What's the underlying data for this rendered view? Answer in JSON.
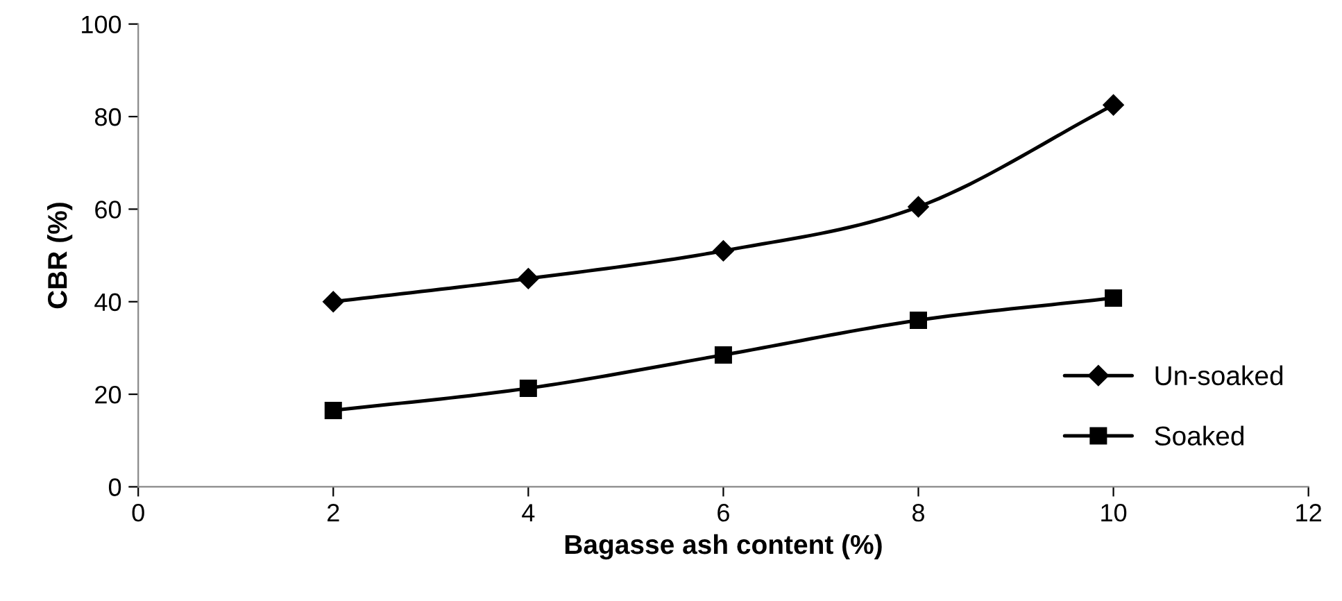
{
  "chart_data": {
    "type": "line",
    "xlabel": "Bagasse ash content (%)",
    "ylabel": "CBR (%)",
    "x": [
      2,
      4,
      6,
      8,
      10
    ],
    "series": [
      {
        "name": "Un-soaked",
        "color": "#000000",
        "marker": "diamond",
        "values": [
          40,
          45,
          51,
          60.5,
          82.5
        ]
      },
      {
        "name": "Soaked",
        "color": "#000000",
        "marker": "square",
        "values": [
          16.5,
          21.3,
          28.5,
          36,
          40.8
        ]
      }
    ],
    "xlim": [
      0,
      12
    ],
    "xticks": [
      0,
      2,
      4,
      6,
      8,
      10,
      12
    ],
    "ylim": [
      0,
      100
    ],
    "yticks": [
      0,
      20,
      40,
      60,
      80,
      100
    ],
    "grid": false,
    "legend": "right",
    "line_style": "solid"
  }
}
